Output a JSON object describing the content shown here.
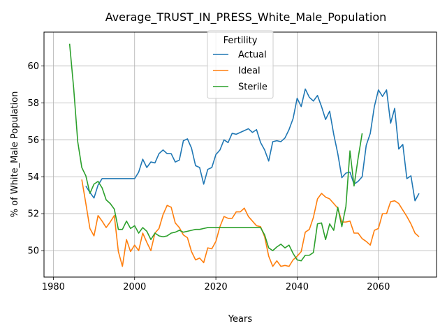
{
  "chart_data": {
    "type": "line",
    "title": "Average_TRUST_IN_PRESS_White_Male_Population",
    "xlabel": "Years",
    "ylabel": "% of White_Male Population",
    "xlim": [
      1977.7,
      2074.3
    ],
    "ylim": [
      48.57,
      61.83
    ],
    "xticks": [
      1980,
      2000,
      2020,
      2040,
      2060
    ],
    "yticks": [
      50,
      52,
      54,
      56,
      58,
      60
    ],
    "grid": true,
    "legend": {
      "title": "Fertility",
      "position": "top-center"
    },
    "series": [
      {
        "name": "Actual",
        "color": "#1f77b4",
        "x": [
          1988,
          1989,
          1990,
          1991,
          1992,
          1993,
          1994,
          1995,
          1996,
          1997,
          1998,
          1999,
          2000,
          2001,
          2002,
          2003,
          2004,
          2005,
          2006,
          2007,
          2008,
          2009,
          2010,
          2011,
          2012,
          2013,
          2014,
          2015,
          2016,
          2017,
          2018,
          2019,
          2020,
          2021,
          2022,
          2023,
          2024,
          2025,
          2026,
          2027,
          2028,
          2029,
          2030,
          2031,
          2032,
          2033,
          2034,
          2035,
          2036,
          2037,
          2038,
          2039,
          2040,
          2041,
          2042,
          2043,
          2044,
          2045,
          2046,
          2047,
          2048,
          2049,
          2050,
          2051,
          2052,
          2053,
          2054,
          2055,
          2056,
          2057,
          2058,
          2059,
          2060,
          2061,
          2062,
          2063,
          2064,
          2065,
          2066,
          2067,
          2068,
          2069,
          2070
        ],
        "y": [
          53.5,
          53.15,
          52.85,
          53.55,
          53.9,
          53.9,
          53.9,
          53.9,
          53.9,
          53.9,
          53.9,
          53.9,
          53.9,
          54.25,
          54.95,
          54.5,
          54.8,
          54.75,
          55.25,
          55.45,
          55.25,
          55.25,
          54.8,
          54.9,
          55.95,
          56.05,
          55.55,
          54.6,
          54.5,
          53.6,
          54.4,
          54.5,
          55.2,
          55.45,
          56.0,
          55.85,
          56.35,
          56.3,
          56.4,
          56.5,
          56.6,
          56.4,
          56.55,
          55.85,
          55.45,
          54.85,
          55.9,
          55.95,
          55.9,
          56.1,
          56.55,
          57.15,
          58.25,
          57.8,
          58.75,
          58.3,
          58.1,
          58.4,
          57.8,
          57.1,
          57.55,
          56.3,
          55.25,
          53.95,
          54.2,
          54.25,
          53.6,
          53.75,
          54.0,
          55.7,
          56.35,
          57.8,
          58.7,
          58.35,
          58.7,
          56.9,
          57.7,
          55.5,
          55.75,
          53.9,
          54.05,
          52.7,
          53.1
        ]
      },
      {
        "name": "Ideal",
        "color": "#ff7f0e",
        "x": [
          1987,
          1988,
          1989,
          1990,
          1991,
          1992,
          1993,
          1994,
          1995,
          1996,
          1997,
          1998,
          1999,
          2000,
          2001,
          2002,
          2003,
          2004,
          2005,
          2006,
          2007,
          2008,
          2009,
          2010,
          2011,
          2012,
          2013,
          2014,
          2015,
          2016,
          2017,
          2018,
          2019,
          2020,
          2021,
          2022,
          2023,
          2024,
          2025,
          2026,
          2027,
          2028,
          2029,
          2030,
          2031,
          2032,
          2033,
          2034,
          2035,
          2036,
          2037,
          2038,
          2039,
          2040,
          2041,
          2042,
          2043,
          2044,
          2045,
          2046,
          2047,
          2048,
          2049,
          2050,
          2051,
          2052,
          2053,
          2054,
          2055,
          2056,
          2057,
          2058,
          2059,
          2060,
          2061,
          2062,
          2063,
          2064,
          2065,
          2066,
          2067,
          2068,
          2069,
          2070
        ],
        "y": [
          53.85,
          52.55,
          51.2,
          50.8,
          51.9,
          51.6,
          51.25,
          51.55,
          51.9,
          49.95,
          49.15,
          50.6,
          49.95,
          50.3,
          50.0,
          50.95,
          50.45,
          50.0,
          50.95,
          51.2,
          51.95,
          52.45,
          52.35,
          51.5,
          51.25,
          50.85,
          50.7,
          49.95,
          49.5,
          49.6,
          49.35,
          50.15,
          50.1,
          50.5,
          51.3,
          51.85,
          51.75,
          51.75,
          52.1,
          52.1,
          52.3,
          51.85,
          51.6,
          51.35,
          51.3,
          50.75,
          49.7,
          49.15,
          49.45,
          49.15,
          49.2,
          49.15,
          49.5,
          49.7,
          49.95,
          51.0,
          51.15,
          51.8,
          52.8,
          53.1,
          52.9,
          52.8,
          52.55,
          52.3,
          51.55,
          51.55,
          51.6,
          50.95,
          50.95,
          50.65,
          50.5,
          50.3,
          51.1,
          51.2,
          52.0,
          52.0,
          52.65,
          52.7,
          52.55,
          52.2,
          51.85,
          51.45,
          50.95,
          50.75
        ]
      },
      {
        "name": "Sterile",
        "color": "#2ca02c",
        "x": [
          1984,
          1985,
          1986,
          1987,
          1988,
          1989,
          1990,
          1991,
          1992,
          1993,
          1994,
          1995,
          1996,
          1997,
          1998,
          1999,
          2000,
          2001,
          2002,
          2003,
          2004,
          2005,
          2006,
          2007,
          2008,
          2009,
          2010,
          2011,
          2012,
          2013,
          2014,
          2015,
          2016,
          2017,
          2018,
          2019,
          2020,
          2021,
          2022,
          2023,
          2024,
          2025,
          2026,
          2027,
          2028,
          2029,
          2030,
          2031,
          2032,
          2033,
          2034,
          2035,
          2036,
          2037,
          2038,
          2039,
          2040,
          2041,
          2042,
          2043,
          2044,
          2045,
          2046,
          2047,
          2048,
          2049,
          2050,
          2051,
          2052,
          2053,
          2054,
          2055,
          2056
        ],
        "y": [
          61.2,
          58.8,
          55.9,
          54.5,
          54.05,
          53.1,
          53.6,
          53.75,
          53.4,
          52.75,
          52.55,
          52.25,
          51.15,
          51.15,
          51.6,
          51.2,
          51.35,
          50.95,
          51.25,
          51.05,
          50.6,
          50.95,
          50.8,
          50.75,
          50.8,
          50.95,
          51.0,
          51.1,
          51.0,
          51.05,
          51.1,
          51.15,
          51.15,
          51.2,
          51.25,
          51.25,
          51.25,
          51.25,
          51.25,
          51.25,
          51.25,
          51.25,
          51.25,
          51.25,
          51.25,
          51.25,
          51.25,
          51.25,
          50.85,
          50.15,
          50.0,
          50.2,
          50.35,
          50.15,
          50.3,
          49.85,
          49.5,
          49.45,
          49.75,
          49.75,
          49.9,
          51.45,
          51.5,
          50.6,
          51.45,
          51.1,
          52.35,
          51.3,
          52.4,
          55.4,
          53.5,
          55.0,
          56.35
        ]
      }
    ]
  }
}
